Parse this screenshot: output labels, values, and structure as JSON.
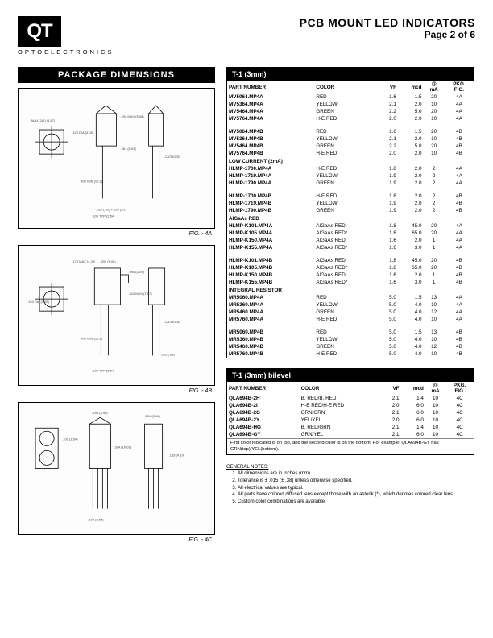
{
  "header": {
    "logo": "QT",
    "logo_sub": "OPTOELECTRONICS",
    "title": "PCB MOUNT LED INDICATORS",
    "page": "Page 2 of 6"
  },
  "package_dimensions": {
    "title": "PACKAGE DIMENSIONS",
    "figs": [
      "FIG. - 4A",
      "FIG. - 4B",
      "FIG. - 4C"
    ]
  },
  "table1": {
    "title": "T-1 (3mm)",
    "columns": [
      "PART NUMBER",
      "COLOR",
      "VF",
      "mcd",
      "@\nmA",
      "PKG.\nFIG."
    ],
    "rows": [
      [
        "MV5064.MP4A",
        "RED",
        "1.6",
        "1.5",
        "20",
        "4A"
      ],
      [
        "MV5364.MP4A",
        "YELLOW",
        "2.1",
        "2.0",
        "10",
        "4A"
      ],
      [
        "MV5464.MP4A",
        "GREEN",
        "2.2",
        "5.0",
        "20",
        "4A"
      ],
      [
        "MV5764.MP4A",
        "H-E RED",
        "2.0",
        "2.0",
        "10",
        "4A"
      ],
      [
        "MV5064.MP4B",
        "RED",
        "1.6",
        "1.5",
        "20",
        "4B"
      ],
      [
        "MV5364.MP4B",
        "YELLOW",
        "2.1",
        "2.0",
        "10",
        "4B"
      ],
      [
        "MV5464.MP4B",
        "GREEN",
        "2.2",
        "5.0",
        "20",
        "4B"
      ],
      [
        "MV5764.MP4B",
        "H-E RED",
        "2.0",
        "2.0",
        "10",
        "4B"
      ]
    ],
    "section2": "LOW CURRENT (2mA)",
    "rows2": [
      [
        "HLMP-1700.MP4A",
        "H-E RED",
        "1.8",
        "2.0",
        "2",
        "4A"
      ],
      [
        "HLMP-1719.MP4A",
        "YELLOW",
        "1.9",
        "2.0",
        "2",
        "4A"
      ],
      [
        "HLMP-1790.MP4A",
        "GREEN",
        "1.9",
        "2.0",
        "2",
        "4A"
      ],
      [
        "HLMP-1700.MP4B",
        "H-E RED",
        "1.8",
        "2.0",
        "2",
        "4B"
      ],
      [
        "HLMP-1719.MP4B",
        "YELLOW",
        "1.9",
        "2.0",
        "2",
        "4B"
      ],
      [
        "HLMP-1790.MP4B",
        "GREEN",
        "1.9",
        "2.0",
        "2",
        "4B"
      ]
    ],
    "section3": "AlGaAs RED",
    "rows3": [
      [
        "HLMP-K101.MP4A",
        "AlGaAs RED",
        "1.8",
        "45.0",
        "20",
        "4A"
      ],
      [
        "HLMP-K105.MP4A",
        "AlGaAs RED*",
        "1.8",
        "65.0",
        "20",
        "4A"
      ],
      [
        "HLMP-K150.MP4A",
        "AlGaAs RED",
        "1.6",
        "2.0",
        "1",
        "4A"
      ],
      [
        "HLMP-K155.MP4A",
        "AlGaAs RED*",
        "1.6",
        "3.0",
        "1",
        "4A"
      ],
      [
        "HLMP-K101.MP4B",
        "AlGaAs RED",
        "1.8",
        "45.0",
        "20",
        "4B"
      ],
      [
        "HLMP-K105.MP4B",
        "AlGaAs RED*",
        "1.8",
        "65.0",
        "20",
        "4B"
      ],
      [
        "HLMP-K150.MP4B",
        "AlGaAs RED",
        "1.6",
        "2.0",
        "1",
        "4B"
      ],
      [
        "HLMP-K155.MP4B",
        "AlGaAs RED*",
        "1.6",
        "3.0",
        "1",
        "4B"
      ]
    ],
    "section4": "INTEGRAL RESISTOR",
    "rows4": [
      [
        "MR5060.MP4A",
        "RED",
        "5.0",
        "1.5",
        "13",
        "4A"
      ],
      [
        "MR5360.MP4A",
        "YELLOW",
        "5.0",
        "4.0",
        "10",
        "4A"
      ],
      [
        "MR5460.MP4A",
        "GREEN",
        "5.0",
        "4.0",
        "12",
        "4A"
      ],
      [
        "MR5760.MP4A",
        "H-E RED",
        "5.0",
        "4.0",
        "10",
        "4A"
      ],
      [
        "MR5060.MP4B",
        "RED",
        "5.0",
        "1.5",
        "13",
        "4B"
      ],
      [
        "MR5360.MP4B",
        "YELLOW",
        "5.0",
        "4.0",
        "10",
        "4B"
      ],
      [
        "MR5460.MP4B",
        "GREEN",
        "5.0",
        "4.0",
        "12",
        "4B"
      ],
      [
        "MR5760.MP4B",
        "H-E RED",
        "5.0",
        "4.0",
        "10",
        "4B"
      ]
    ]
  },
  "table2": {
    "title": "T-1 (3mm) bilevel",
    "columns": [
      "PART NUMBER",
      "COLOR",
      "VF",
      "mcd",
      "@\nmA",
      "PKG.\nFIG."
    ],
    "rows": [
      [
        "QLA694B-2H",
        "B. RED/B. RED",
        "2.1",
        "1.4",
        "10",
        "4C"
      ],
      [
        "QLA694B-2I",
        "H-E RED/H-E RED",
        "2.0",
        "6.0",
        "10",
        "4C"
      ],
      [
        "QLA694B-2G",
        "GRN/GRN",
        "2.1",
        "6.0",
        "10",
        "4C"
      ],
      [
        "QLA694B-2Y",
        "YEL/YEL",
        "2.0",
        "6.0",
        "10",
        "4C"
      ],
      [
        "QLA694B-HG",
        "B. RED/GRN",
        "2.1",
        "1.4",
        "10",
        "4C"
      ],
      [
        "QLA694B-GY",
        "GRN/YEL",
        "2.1",
        "6.0",
        "10",
        "4C"
      ]
    ],
    "footnote": "First color indicated is on top, and the second color is on the bottom.\nFor example: QLA694B-GY has GRN(top)/YEL(bottom)."
  },
  "notes": {
    "title": "GENERAL NOTES:",
    "items": [
      "All dimensions are in inches (mm).",
      "Tolerance is ± .015 (± .38) unless otherwise specified.",
      "All electrical values are typical.",
      "All parts have colored diffused lens except those with an asterik (*), which denotes colored clear lens.",
      "Custom color combinations are available."
    ]
  }
}
